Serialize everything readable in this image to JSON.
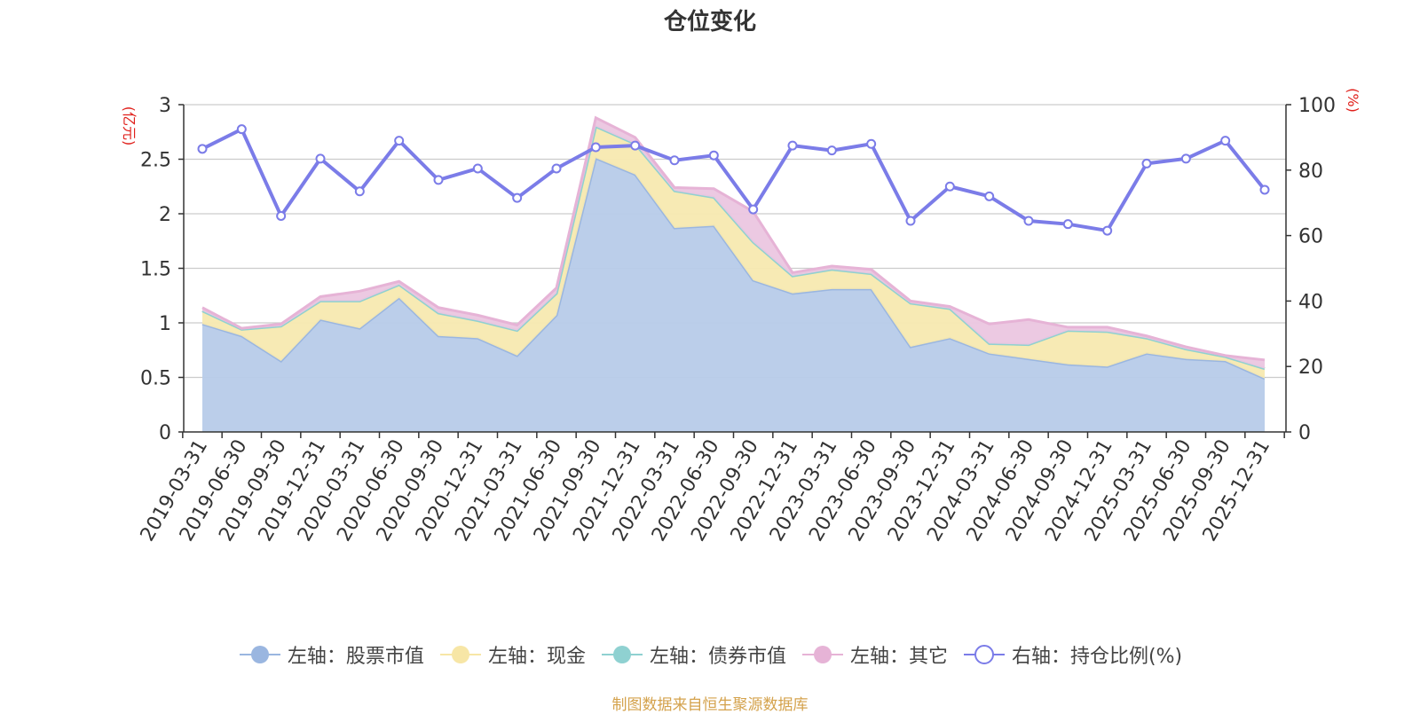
{
  "chart_data": {
    "type": "area",
    "title": "仓位变化",
    "left_axis_unit": "(亿元)",
    "right_axis_unit": "(%)",
    "left_ylim": [
      0,
      3
    ],
    "left_ticks": [
      0,
      0.5,
      1,
      1.5,
      2,
      2.5,
      3
    ],
    "right_ylim": [
      0,
      100
    ],
    "right_ticks": [
      0,
      20,
      40,
      60,
      80,
      100
    ],
    "categories": [
      "2019-03-31",
      "2019-06-30",
      "2019-09-30",
      "2019-12-31",
      "2020-03-31",
      "2020-06-30",
      "2020-09-30",
      "2020-12-31",
      "2021-03-31",
      "2021-06-30",
      "2021-09-30",
      "2021-12-31",
      "2022-03-31",
      "2022-06-30",
      "2022-09-30",
      "2022-12-31",
      "2023-03-31",
      "2023-06-30",
      "2023-09-30",
      "2023-12-31",
      "2024-03-31",
      "2024-06-30",
      "2024-09-30",
      "2024-12-31",
      "2025-03-31",
      "2025-06-30",
      "2025-09-30",
      "2025-12-31"
    ],
    "series": [
      {
        "name": "左轴：股票市值",
        "axis": "left",
        "stack": true,
        "color": "#9ab6e0",
        "fill": "#b7cbe9",
        "values": [
          0.99,
          0.88,
          0.65,
          1.03,
          0.95,
          1.23,
          0.88,
          0.86,
          0.7,
          1.07,
          2.51,
          2.36,
          1.87,
          1.89,
          1.39,
          1.27,
          1.31,
          1.31,
          0.78,
          0.86,
          0.72,
          0.67,
          0.62,
          0.6,
          0.72,
          0.67,
          0.65,
          0.49
        ]
      },
      {
        "name": "左轴：现金",
        "axis": "left",
        "stack": true,
        "color": "#f4e39c",
        "fill": "#f7e9b0",
        "values": [
          0.12,
          0.06,
          0.32,
          0.17,
          0.25,
          0.12,
          0.21,
          0.16,
          0.23,
          0.2,
          0.29,
          0.28,
          0.34,
          0.26,
          0.35,
          0.16,
          0.18,
          0.14,
          0.4,
          0.27,
          0.09,
          0.13,
          0.31,
          0.32,
          0.14,
          0.09,
          0.04,
          0.09
        ]
      },
      {
        "name": "左轴：债券市值",
        "axis": "left",
        "stack": true,
        "color": "#8fd1d1",
        "fill": "#a8dcdc",
        "values": [
          0,
          0,
          0,
          0,
          0,
          0,
          0,
          0,
          0,
          0,
          0,
          0,
          0,
          0,
          0,
          0,
          0,
          0,
          0,
          0,
          0,
          0,
          0,
          0,
          0,
          0,
          0,
          0
        ]
      },
      {
        "name": "左轴：其它",
        "axis": "left",
        "stack": true,
        "color": "#e6b3d6",
        "fill": "#ebc6e0",
        "values": [
          0.03,
          0.01,
          0.02,
          0.04,
          0.09,
          0.03,
          0.05,
          0.05,
          0.05,
          0.05,
          0.08,
          0.06,
          0.03,
          0.08,
          0.28,
          0.03,
          0.03,
          0.04,
          0.02,
          0.02,
          0.18,
          0.23,
          0.03,
          0.04,
          0.02,
          0.02,
          0.01,
          0.08
        ]
      },
      {
        "name": "右轴：持仓比例(%)",
        "axis": "right",
        "stack": false,
        "color": "#7b7ce8",
        "fill": "none",
        "values": [
          86.5,
          92.5,
          66.0,
          83.5,
          73.5,
          89.0,
          77.0,
          80.5,
          71.5,
          80.5,
          87.0,
          87.5,
          83.0,
          84.5,
          68.0,
          87.5,
          86.0,
          88.0,
          64.5,
          75.0,
          72.0,
          64.5,
          63.5,
          61.5,
          82.0,
          83.5,
          89.0,
          74.0
        ]
      }
    ]
  },
  "legend": {
    "items": [
      {
        "label": "左轴：股票市值",
        "icon": "filled-circle",
        "color": "#9ab6e0"
      },
      {
        "label": "左轴：现金",
        "icon": "filled-circle",
        "color": "#f7e6a6"
      },
      {
        "label": "左轴：债券市值",
        "icon": "filled-circle",
        "color": "#8fd1d1"
      },
      {
        "label": "左轴：其它",
        "icon": "filled-circle",
        "color": "#e6b3d6"
      },
      {
        "label": "右轴：持仓比例(%)",
        "icon": "hollow-circle",
        "color": "#7b7ce8"
      }
    ]
  },
  "source_note": "制图数据来自恒生聚源数据库"
}
